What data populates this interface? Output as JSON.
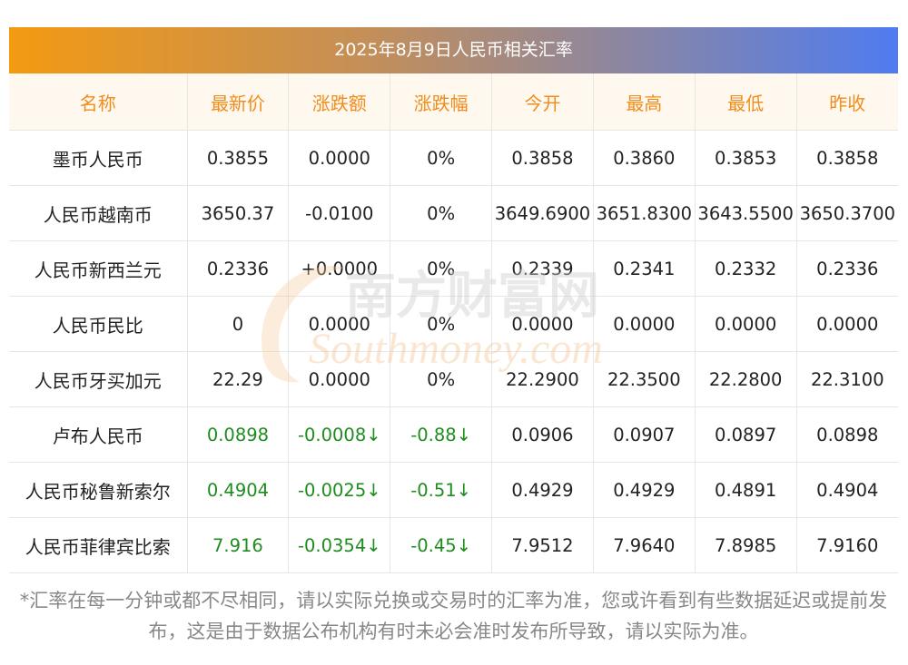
{
  "title": "2025年8月9日人民币相关汇率",
  "headers": [
    "名称",
    "最新价",
    "涨跌额",
    "涨跌幅",
    "今开",
    "最高",
    "最低",
    "昨收"
  ],
  "rows": [
    {
      "name": "墨币人民币",
      "latest": "0.3855",
      "change": "0.0000",
      "pct": "0%",
      "open": "0.3858",
      "high": "0.3860",
      "low": "0.3853",
      "prev": "0.3858",
      "down": false
    },
    {
      "name": "人民币越南币",
      "latest": "3650.37",
      "change": "-0.0100",
      "pct": "0%",
      "open": "3649.6900",
      "high": "3651.8300",
      "low": "3643.5500",
      "prev": "3650.3700",
      "down": false
    },
    {
      "name": "人民币新西兰元",
      "latest": "0.2336",
      "change": "+0.0000",
      "pct": "0%",
      "open": "0.2339",
      "high": "0.2341",
      "low": "0.2332",
      "prev": "0.2336",
      "down": false
    },
    {
      "name": "人民币民比",
      "latest": "0",
      "change": "0.0000",
      "pct": "0%",
      "open": "0.0000",
      "high": "0.0000",
      "low": "0.0000",
      "prev": "0.0000",
      "down": false
    },
    {
      "name": "人民币牙买加元",
      "latest": "22.29",
      "change": "0.0000",
      "pct": "0%",
      "open": "22.2900",
      "high": "22.3500",
      "low": "22.2800",
      "prev": "22.3100",
      "down": false
    },
    {
      "name": "卢布人民币",
      "latest": "0.0898",
      "change": "-0.0008↓",
      "pct": "-0.88↓",
      "open": "0.0906",
      "high": "0.0907",
      "low": "0.0897",
      "prev": "0.0898",
      "down": true
    },
    {
      "name": "人民币秘鲁新索尔",
      "latest": "0.4904",
      "change": "-0.0025↓",
      "pct": "-0.51↓",
      "open": "0.4929",
      "high": "0.4929",
      "low": "0.4891",
      "prev": "0.4904",
      "down": true
    },
    {
      "name": "人民币菲律宾比索",
      "latest": "7.916",
      "change": "-0.0354↓",
      "pct": "-0.45↓",
      "open": "7.9512",
      "high": "7.9640",
      "low": "7.8985",
      "prev": "7.9160",
      "down": true
    }
  ],
  "watermark": {
    "cn": "南方财富网",
    "en": "Southmoney.com"
  },
  "footnote": "*汇率在每一分钟或都不尽相同，请以实际兑换或交易时的汇率为准，您或许看到有些数据延迟或提前发布，这是由于数据公布机构有时未必会准时发布所导致，请以实际为准。",
  "colors": {
    "header_text": "#f08c1c",
    "header_bg": "#fff8ee",
    "down": "#1e8c1e",
    "title_gradient_start": "#f39a12",
    "title_gradient_end": "#4f7cf0"
  }
}
